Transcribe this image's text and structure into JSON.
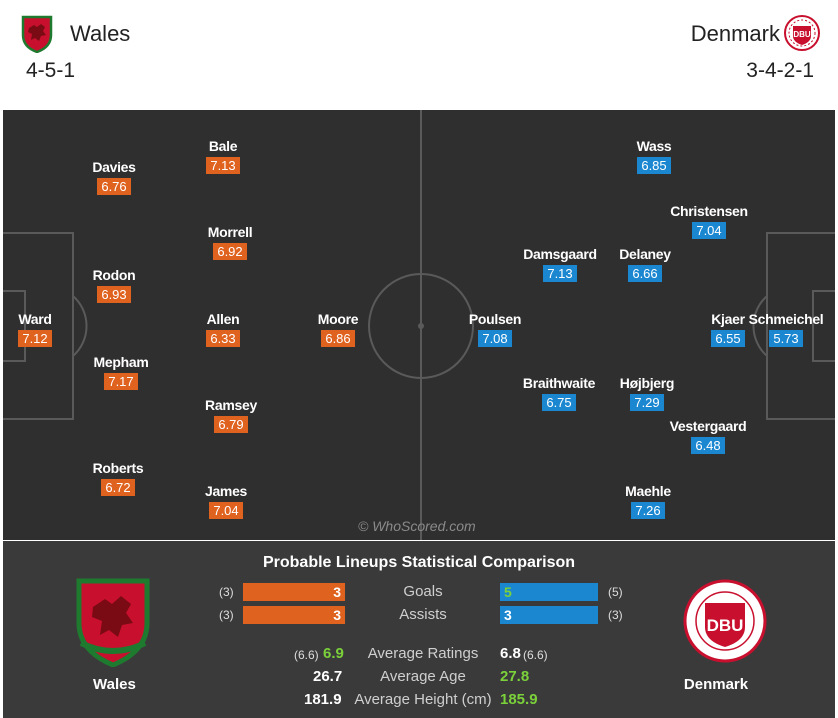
{
  "header": {
    "home": {
      "name": "Wales",
      "formation": "4-5-1"
    },
    "away": {
      "name": "Denmark",
      "formation": "3-4-2-1"
    }
  },
  "colors": {
    "home_rating": "#e0621f",
    "away_rating": "#1b87d1",
    "pitch": "#2f2f2f",
    "stats_bg": "#3a3a3a",
    "highlight": "#7bd13a"
  },
  "pitch": {
    "watermark": "© WhoScored.com",
    "home_players": [
      {
        "name": "Ward",
        "rating": "7.12"
      },
      {
        "name": "Davies",
        "rating": "6.76"
      },
      {
        "name": "Rodon",
        "rating": "6.93"
      },
      {
        "name": "Mepham",
        "rating": "7.17"
      },
      {
        "name": "Roberts",
        "rating": "6.72"
      },
      {
        "name": "Bale",
        "rating": "7.13"
      },
      {
        "name": "Morrell",
        "rating": "6.92"
      },
      {
        "name": "Allen",
        "rating": "6.33"
      },
      {
        "name": "Ramsey",
        "rating": "6.79"
      },
      {
        "name": "James",
        "rating": "7.04"
      },
      {
        "name": "Moore",
        "rating": "6.86"
      }
    ],
    "away_players": [
      {
        "name": "Schmeichel",
        "rating": "5.73"
      },
      {
        "name": "Kjaer",
        "rating": "6.55"
      },
      {
        "name": "Christensen",
        "rating": "7.04"
      },
      {
        "name": "Vestergaard",
        "rating": "6.48"
      },
      {
        "name": "Wass",
        "rating": "6.85"
      },
      {
        "name": "Delaney",
        "rating": "6.66"
      },
      {
        "name": "Højbjerg",
        "rating": "7.29"
      },
      {
        "name": "Maehle",
        "rating": "7.26"
      },
      {
        "name": "Damsgaard",
        "rating": "7.13"
      },
      {
        "name": "Braithwaite",
        "rating": "6.75"
      },
      {
        "name": "Poulsen",
        "rating": "7.08"
      }
    ]
  },
  "stats": {
    "title": "Probable Lineups Statistical Comparison",
    "home_team": "Wales",
    "away_team": "Denmark",
    "goals": {
      "label": "Goals",
      "home": "3",
      "home_total": "(3)",
      "away": "5",
      "away_total": "(5)"
    },
    "assists": {
      "label": "Assists",
      "home": "3",
      "home_total": "(3)",
      "away": "3",
      "away_total": "(3)"
    },
    "avg_ratings": {
      "label": "Average Ratings",
      "home": "6.9",
      "home_total": "(6.6)",
      "away": "6.8",
      "away_total": "(6.6)"
    },
    "avg_age": {
      "label": "Average Age",
      "home": "26.7",
      "away": "27.8"
    },
    "avg_height": {
      "label": "Average Height (cm)",
      "home": "181.9",
      "away": "185.9"
    }
  }
}
